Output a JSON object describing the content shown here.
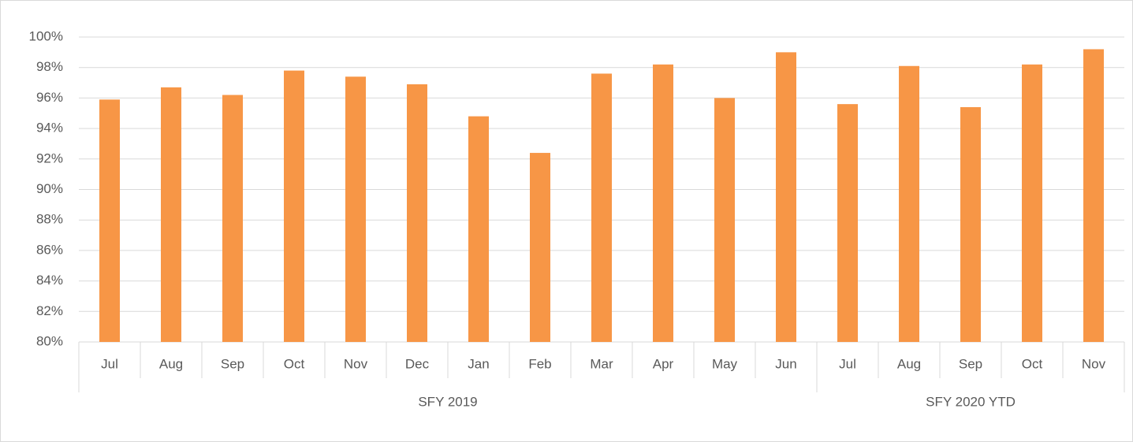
{
  "chart_data": {
    "type": "bar",
    "color": "#f79646",
    "groups": [
      {
        "name": "SFY 2019",
        "categories": [
          "Jul",
          "Aug",
          "Sep",
          "Oct",
          "Nov",
          "Dec",
          "Jan",
          "Feb",
          "Mar",
          "Apr",
          "May",
          "Jun"
        ],
        "values": [
          95.9,
          96.7,
          96.2,
          97.8,
          97.4,
          96.9,
          94.8,
          92.4,
          97.6,
          98.2,
          96.0,
          99.0
        ]
      },
      {
        "name": "SFY 2020 YTD",
        "categories": [
          "Jul",
          "Aug",
          "Sep",
          "Oct",
          "Nov"
        ],
        "values": [
          95.6,
          98.1,
          95.4,
          98.2,
          99.2
        ]
      }
    ],
    "ylim": [
      80,
      100
    ],
    "yticks": [
      {
        "value": 80,
        "label": "80%"
      },
      {
        "value": 82,
        "label": "82%"
      },
      {
        "value": 84,
        "label": "84%"
      },
      {
        "value": 86,
        "label": "86%"
      },
      {
        "value": 88,
        "label": "88%"
      },
      {
        "value": 90,
        "label": "90%"
      },
      {
        "value": 92,
        "label": "92%"
      },
      {
        "value": 94,
        "label": "94%"
      },
      {
        "value": 96,
        "label": "96%"
      },
      {
        "value": 98,
        "label": "98%"
      },
      {
        "value": 100,
        "label": "100%"
      }
    ],
    "grid": true
  }
}
